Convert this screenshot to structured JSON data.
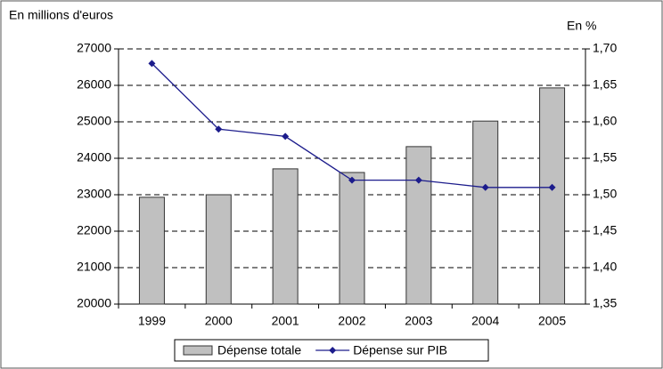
{
  "chart_data": {
    "type": "bar",
    "y_label": "En millions d'euros",
    "y2_label": "En %",
    "categories": [
      "1999",
      "2000",
      "2001",
      "2002",
      "2003",
      "2004",
      "2005"
    ],
    "series": [
      {
        "name": "Dépense totale",
        "type": "bar",
        "color": "#c0c0c0",
        "values": [
          22930,
          23000,
          23710,
          23610,
          24320,
          25020,
          25930
        ]
      },
      {
        "name": "Dépense sur PIB",
        "type": "line",
        "axis": "y2",
        "color": "#1c1c8c",
        "values": [
          1.68,
          1.59,
          1.58,
          1.52,
          1.52,
          1.51,
          1.51
        ]
      }
    ],
    "ylim": [
      20000,
      27000
    ],
    "yticks": [
      20000,
      21000,
      22000,
      23000,
      24000,
      25000,
      26000,
      27000
    ],
    "y2lim": [
      1.35,
      1.7
    ],
    "y2ticks": [
      {
        "value": 1.35,
        "label": "1,35"
      },
      {
        "value": 1.4,
        "label": "1,40"
      },
      {
        "value": 1.45,
        "label": "1,45"
      },
      {
        "value": 1.5,
        "label": "1,50"
      },
      {
        "value": 1.55,
        "label": "1,55"
      },
      {
        "value": 1.6,
        "label": "1,60"
      },
      {
        "value": 1.65,
        "label": "1,65"
      },
      {
        "value": 1.7,
        "label": "1,70"
      }
    ],
    "grid": true
  }
}
